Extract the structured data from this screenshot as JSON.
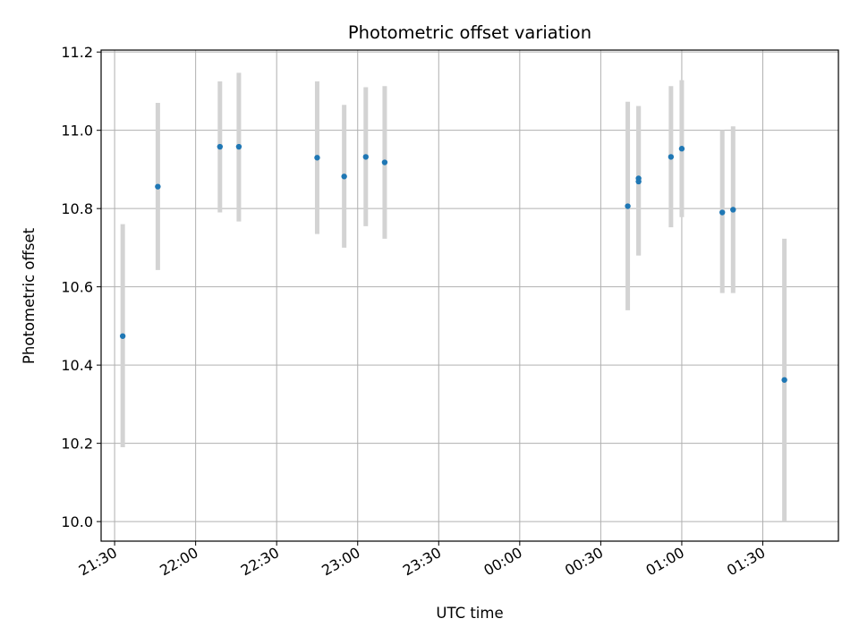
{
  "chart_data": {
    "type": "scatter",
    "title": "Photometric offset variation",
    "xlabel": "UTC time",
    "ylabel": "Photometric offset",
    "x_axis_type": "time",
    "x_range": [
      "21:25",
      "01:58"
    ],
    "x_ticks": [
      "21:30",
      "22:00",
      "22:30",
      "23:00",
      "23:30",
      "00:00",
      "00:30",
      "01:00",
      "01:30"
    ],
    "ylim": [
      9.95,
      11.205
    ],
    "y_ticks": [
      "10.0",
      "10.2",
      "10.4",
      "10.6",
      "10.8",
      "11.0",
      "11.2"
    ],
    "grid": true,
    "point_color": "#1f77b4",
    "errorbar_color": "#d3d3d3",
    "points": [
      {
        "x": "21:33",
        "y": 10.474,
        "ylow": 10.19,
        "yhigh": 10.76
      },
      {
        "x": "21:46",
        "y": 10.856,
        "ylow": 10.643,
        "yhigh": 11.07
      },
      {
        "x": "22:09",
        "y": 10.958,
        "ylow": 10.79,
        "yhigh": 11.125
      },
      {
        "x": "22:16",
        "y": 10.958,
        "ylow": 10.767,
        "yhigh": 11.147
      },
      {
        "x": "22:45",
        "y": 10.93,
        "ylow": 10.735,
        "yhigh": 11.125
      },
      {
        "x": "22:55",
        "y": 10.882,
        "ylow": 10.7,
        "yhigh": 11.065
      },
      {
        "x": "23:03",
        "y": 10.932,
        "ylow": 10.755,
        "yhigh": 11.11
      },
      {
        "x": "23:10",
        "y": 10.918,
        "ylow": 10.723,
        "yhigh": 11.113
      },
      {
        "x": "00:40",
        "y": 10.806,
        "ylow": 10.54,
        "yhigh": 11.073
      },
      {
        "x": "00:44",
        "y": 10.869,
        "ylow": 10.68,
        "yhigh": 11.062
      },
      {
        "x": "00:44",
        "y": 10.877,
        "ylow": 10.68,
        "yhigh": 11.062
      },
      {
        "x": "00:56",
        "y": 10.932,
        "ylow": 10.752,
        "yhigh": 11.113
      },
      {
        "x": "01:00",
        "y": 10.953,
        "ylow": 10.778,
        "yhigh": 11.128
      },
      {
        "x": "01:15",
        "y": 10.79,
        "ylow": 10.584,
        "yhigh": 11.0
      },
      {
        "x": "01:19",
        "y": 10.797,
        "ylow": 10.584,
        "yhigh": 11.01
      },
      {
        "x": "01:38",
        "y": 10.362,
        "ylow": 10.0,
        "yhigh": 10.723
      }
    ]
  }
}
